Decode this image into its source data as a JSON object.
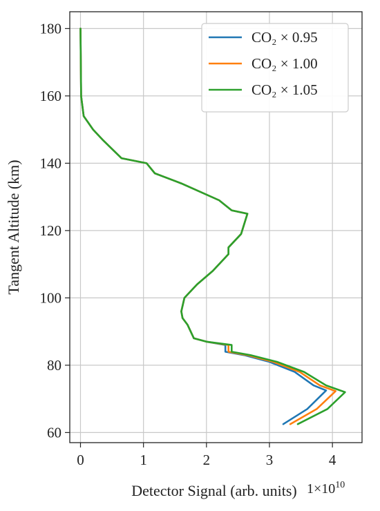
{
  "chart_data": {
    "type": "line",
    "title": "",
    "xlabel": "Detector Signal (arb. units)",
    "ylabel": "Tangent Altitude (km)",
    "x_offset_label": "1×10",
    "x_offset_exponent": "10",
    "xlim": [
      -0.17,
      4.47
    ],
    "ylim": [
      57,
      185
    ],
    "xticks": [
      0,
      1,
      2,
      3,
      4
    ],
    "yticks": [
      60,
      80,
      100,
      120,
      140,
      160,
      180
    ],
    "xtick_labels": [
      "0",
      "1",
      "2",
      "3",
      "4"
    ],
    "ytick_labels": [
      "60",
      "80",
      "100",
      "120",
      "140",
      "160",
      "180"
    ],
    "grid": true,
    "legend_position": "top-right",
    "series": [
      {
        "name": "CO₂ × 0.95",
        "color": "#1f77b4",
        "points": [
          [
            0.0,
            180
          ],
          [
            0.01,
            160
          ],
          [
            0.05,
            154
          ],
          [
            0.2,
            150
          ],
          [
            0.35,
            147
          ],
          [
            0.65,
            141.5
          ],
          [
            1.05,
            140
          ],
          [
            1.18,
            137
          ],
          [
            1.6,
            134
          ],
          [
            2.2,
            129
          ],
          [
            2.4,
            126
          ],
          [
            2.65,
            125
          ],
          [
            2.55,
            119
          ],
          [
            2.35,
            115
          ],
          [
            2.35,
            113
          ],
          [
            2.1,
            108
          ],
          [
            1.85,
            104
          ],
          [
            1.65,
            100
          ],
          [
            1.6,
            96
          ],
          [
            1.62,
            94
          ],
          [
            1.7,
            92
          ],
          [
            1.8,
            88
          ],
          [
            2.0,
            87
          ],
          [
            2.3,
            86
          ],
          [
            2.3,
            84
          ],
          [
            2.6,
            83
          ],
          [
            3.0,
            81
          ],
          [
            3.4,
            78
          ],
          [
            3.7,
            74
          ],
          [
            3.9,
            72.5
          ],
          [
            3.6,
            67
          ],
          [
            3.22,
            62.5
          ]
        ]
      },
      {
        "name": "CO₂ × 1.00",
        "color": "#ff7f0e",
        "points": [
          [
            0.0,
            180
          ],
          [
            0.01,
            160
          ],
          [
            0.05,
            154
          ],
          [
            0.2,
            150
          ],
          [
            0.35,
            147
          ],
          [
            0.65,
            141.5
          ],
          [
            1.05,
            140
          ],
          [
            1.18,
            137
          ],
          [
            1.6,
            134
          ],
          [
            2.2,
            129
          ],
          [
            2.4,
            126
          ],
          [
            2.65,
            125
          ],
          [
            2.55,
            119
          ],
          [
            2.35,
            115
          ],
          [
            2.35,
            113
          ],
          [
            2.1,
            108
          ],
          [
            1.85,
            104
          ],
          [
            1.65,
            100
          ],
          [
            1.6,
            96
          ],
          [
            1.62,
            94
          ],
          [
            1.7,
            92
          ],
          [
            1.8,
            88
          ],
          [
            2.0,
            87
          ],
          [
            2.35,
            86
          ],
          [
            2.35,
            84
          ],
          [
            2.65,
            83
          ],
          [
            3.06,
            81
          ],
          [
            3.48,
            78
          ],
          [
            3.8,
            74
          ],
          [
            4.05,
            72.3
          ],
          [
            3.75,
            67
          ],
          [
            3.33,
            62.5
          ]
        ]
      },
      {
        "name": "CO₂ × 1.05",
        "color": "#2ca02c",
        "points": [
          [
            0.0,
            180
          ],
          [
            0.01,
            160
          ],
          [
            0.05,
            154
          ],
          [
            0.2,
            150
          ],
          [
            0.35,
            147
          ],
          [
            0.65,
            141.5
          ],
          [
            1.05,
            140
          ],
          [
            1.18,
            137
          ],
          [
            1.6,
            134
          ],
          [
            2.2,
            129
          ],
          [
            2.4,
            126
          ],
          [
            2.65,
            125
          ],
          [
            2.55,
            119
          ],
          [
            2.35,
            115
          ],
          [
            2.35,
            113
          ],
          [
            2.1,
            108
          ],
          [
            1.85,
            104
          ],
          [
            1.65,
            100
          ],
          [
            1.6,
            96
          ],
          [
            1.62,
            94
          ],
          [
            1.7,
            92
          ],
          [
            1.8,
            88
          ],
          [
            2.0,
            87
          ],
          [
            2.4,
            86
          ],
          [
            2.4,
            84
          ],
          [
            2.7,
            83
          ],
          [
            3.12,
            81
          ],
          [
            3.55,
            78
          ],
          [
            3.9,
            74
          ],
          [
            4.2,
            72
          ],
          [
            3.92,
            67
          ],
          [
            3.45,
            62.5
          ]
        ]
      }
    ]
  }
}
